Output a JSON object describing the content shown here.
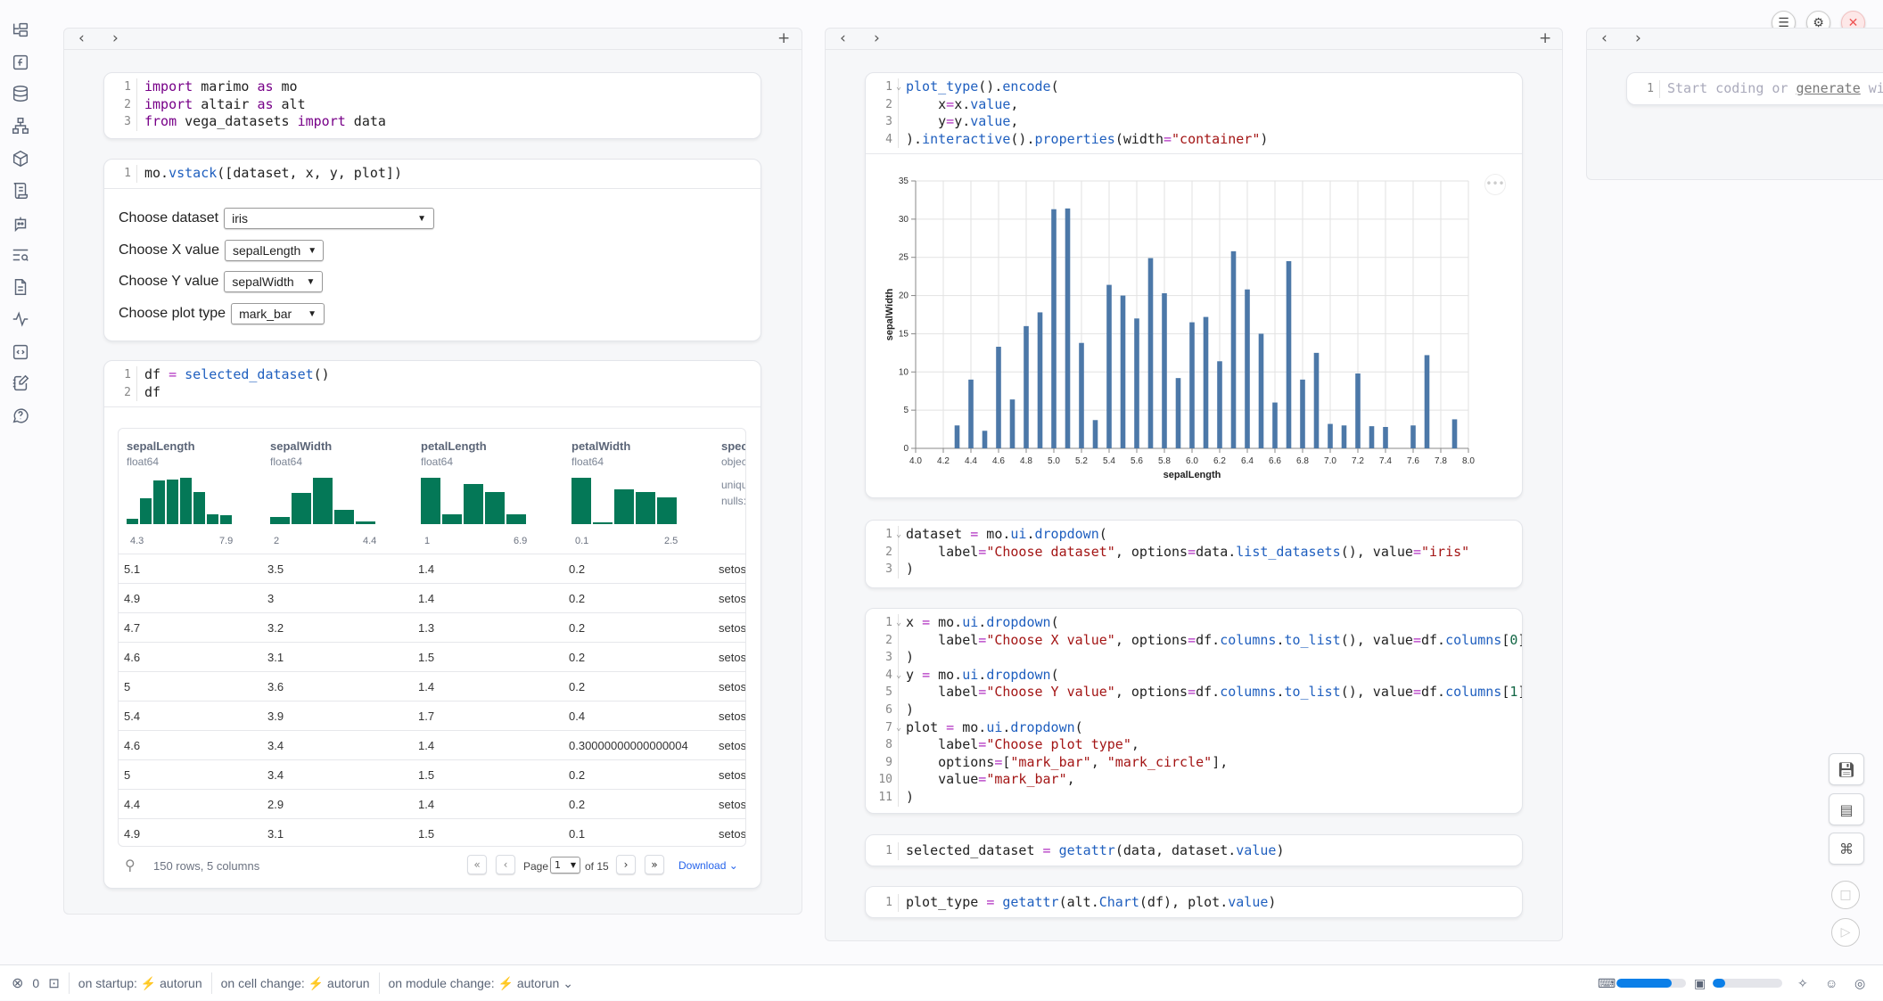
{
  "sidebar": {
    "icons": [
      "file-tree-icon",
      "function-icon",
      "database-icon",
      "dependency-graph-icon",
      "package-icon",
      "scroll-log-icon",
      "chat-bot-icon",
      "search-list-icon",
      "document-icon",
      "activity-icon",
      "code-snippet-icon",
      "notebook-edit-icon",
      "help-icon"
    ]
  },
  "nav": {
    "back": "‹",
    "forward": "›",
    "add": "+"
  },
  "topbar": {
    "menu_icon": "menu-icon",
    "settings_icon": "gear-icon",
    "close_icon": "close-icon"
  },
  "cells": {
    "imports": [
      [
        [
          "k",
          "import"
        ],
        [
          "p",
          " marimo "
        ],
        [
          "k",
          "as"
        ],
        [
          "p",
          " mo"
        ]
      ],
      [
        [
          "k",
          "import"
        ],
        [
          "p",
          " altair "
        ],
        [
          "k",
          "as"
        ],
        [
          "p",
          " alt"
        ]
      ],
      [
        [
          "k",
          "from"
        ],
        [
          "p",
          " vega_datasets "
        ],
        [
          "k",
          "import"
        ],
        [
          "p",
          " data"
        ]
      ]
    ],
    "vstack": [
      [
        [
          "p",
          "mo."
        ],
        [
          "f",
          "vstack"
        ],
        [
          "p",
          "([dataset, x, y, plot])"
        ]
      ]
    ],
    "df": [
      [
        [
          "p",
          "df "
        ],
        [
          "o",
          "="
        ],
        [
          "p",
          " "
        ],
        [
          "f",
          "selected_dataset"
        ],
        [
          "p",
          "()"
        ]
      ],
      [
        [
          "p",
          "df"
        ]
      ]
    ],
    "encode": [
      [
        [
          "f",
          "plot_type"
        ],
        [
          "p",
          "()."
        ],
        [
          "f",
          "encode"
        ],
        [
          "p",
          "("
        ]
      ],
      [
        [
          "p",
          "    x"
        ],
        [
          "o",
          "="
        ],
        [
          "p",
          "x."
        ],
        [
          "f",
          "value"
        ],
        [
          "p",
          ","
        ]
      ],
      [
        [
          "p",
          "    y"
        ],
        [
          "o",
          "="
        ],
        [
          "p",
          "y."
        ],
        [
          "f",
          "value"
        ],
        [
          "p",
          ","
        ]
      ],
      [
        [
          "p",
          ")."
        ],
        [
          "f",
          "interactive"
        ],
        [
          "p",
          "()."
        ],
        [
          "f",
          "properties"
        ],
        [
          "p",
          "(width"
        ],
        [
          "o",
          "="
        ],
        [
          "s",
          "\"container\""
        ],
        [
          "p",
          ")"
        ]
      ]
    ],
    "dataset": [
      [
        [
          "p",
          "dataset "
        ],
        [
          "o",
          "="
        ],
        [
          "p",
          " mo."
        ],
        [
          "f",
          "ui"
        ],
        [
          "p",
          "."
        ],
        [
          "f",
          "dropdown"
        ],
        [
          "p",
          "("
        ]
      ],
      [
        [
          "p",
          "    label"
        ],
        [
          "o",
          "="
        ],
        [
          "s",
          "\"Choose dataset\""
        ],
        [
          "p",
          ", options"
        ],
        [
          "o",
          "="
        ],
        [
          "p",
          "data."
        ],
        [
          "f",
          "list_datasets"
        ],
        [
          "p",
          "(), value"
        ],
        [
          "o",
          "="
        ],
        [
          "s",
          "\"iris\""
        ]
      ],
      [
        [
          "p",
          ")"
        ]
      ]
    ],
    "dropdowns": [
      [
        [
          "p",
          "x "
        ],
        [
          "o",
          "="
        ],
        [
          "p",
          " mo."
        ],
        [
          "f",
          "ui"
        ],
        [
          "p",
          "."
        ],
        [
          "f",
          "dropdown"
        ],
        [
          "p",
          "("
        ]
      ],
      [
        [
          "p",
          "    label"
        ],
        [
          "o",
          "="
        ],
        [
          "s",
          "\"Choose X value\""
        ],
        [
          "p",
          ", options"
        ],
        [
          "o",
          "="
        ],
        [
          "p",
          "df."
        ],
        [
          "f",
          "columns"
        ],
        [
          "p",
          "."
        ],
        [
          "f",
          "to_list"
        ],
        [
          "p",
          "(), value"
        ],
        [
          "o",
          "="
        ],
        [
          "p",
          "df."
        ],
        [
          "f",
          "columns"
        ],
        [
          "p",
          "["
        ],
        [
          "n",
          "0"
        ],
        [
          "p",
          "]"
        ]
      ],
      [
        [
          "p",
          ")"
        ]
      ],
      [
        [
          "p",
          "y "
        ],
        [
          "o",
          "="
        ],
        [
          "p",
          " mo."
        ],
        [
          "f",
          "ui"
        ],
        [
          "p",
          "."
        ],
        [
          "f",
          "dropdown"
        ],
        [
          "p",
          "("
        ]
      ],
      [
        [
          "p",
          "    label"
        ],
        [
          "o",
          "="
        ],
        [
          "s",
          "\"Choose Y value\""
        ],
        [
          "p",
          ", options"
        ],
        [
          "o",
          "="
        ],
        [
          "p",
          "df."
        ],
        [
          "f",
          "columns"
        ],
        [
          "p",
          "."
        ],
        [
          "f",
          "to_list"
        ],
        [
          "p",
          "(), value"
        ],
        [
          "o",
          "="
        ],
        [
          "p",
          "df."
        ],
        [
          "f",
          "columns"
        ],
        [
          "p",
          "["
        ],
        [
          "n",
          "1"
        ],
        [
          "p",
          "]"
        ]
      ],
      [
        [
          "p",
          ")"
        ]
      ],
      [
        [
          "p",
          "plot "
        ],
        [
          "o",
          "="
        ],
        [
          "p",
          " mo."
        ],
        [
          "f",
          "ui"
        ],
        [
          "p",
          "."
        ],
        [
          "f",
          "dropdown"
        ],
        [
          "p",
          "("
        ]
      ],
      [
        [
          "p",
          "    label"
        ],
        [
          "o",
          "="
        ],
        [
          "s",
          "\"Choose plot type\""
        ],
        [
          "p",
          ","
        ]
      ],
      [
        [
          "p",
          "    options"
        ],
        [
          "o",
          "="
        ],
        [
          "p",
          "["
        ],
        [
          "s",
          "\"mark_bar\""
        ],
        [
          "p",
          ", "
        ],
        [
          "s",
          "\"mark_circle\""
        ],
        [
          "p",
          "],"
        ]
      ],
      [
        [
          "p",
          "    value"
        ],
        [
          "o",
          "="
        ],
        [
          "s",
          "\"mark_bar\""
        ],
        [
          "p",
          ","
        ]
      ],
      [
        [
          "p",
          ")"
        ]
      ]
    ],
    "selected": [
      [
        [
          "p",
          "selected_dataset "
        ],
        [
          "o",
          "="
        ],
        [
          "p",
          " "
        ],
        [
          "f",
          "getattr"
        ],
        [
          "p",
          "(data, dataset."
        ],
        [
          "f",
          "value"
        ],
        [
          "p",
          ")"
        ]
      ]
    ],
    "plottype": [
      [
        [
          "p",
          "plot_type "
        ],
        [
          "o",
          "="
        ],
        [
          "p",
          " "
        ],
        [
          "f",
          "getattr"
        ],
        [
          "p",
          "(alt."
        ],
        [
          "f",
          "Chart"
        ],
        [
          "p",
          "(df), plot."
        ],
        [
          "f",
          "value"
        ],
        [
          "p",
          ")"
        ]
      ]
    ],
    "empty": [
      [
        [
          "ph",
          "Start coding or "
        ],
        [
          "u",
          "generate"
        ],
        [
          "ph",
          " with AI."
        ]
      ]
    ]
  },
  "folds": {
    "encode": [
      1
    ],
    "dataset": [
      1
    ],
    "dropdowns": [
      1,
      4,
      7
    ]
  },
  "form": {
    "dataset": {
      "label": "Choose dataset",
      "value": "iris"
    },
    "x": {
      "label": "Choose X value",
      "value": "sepalLength"
    },
    "y": {
      "label": "Choose Y value",
      "value": "sepalWidth"
    },
    "plot": {
      "label": "Choose plot type",
      "value": "mark_bar"
    }
  },
  "table": {
    "columns": [
      {
        "name": "sepalLength",
        "type": "float64",
        "hist": [
          4,
          18,
          30,
          31,
          32,
          22,
          7,
          6
        ],
        "min": "4.3",
        "max": "7.9"
      },
      {
        "name": "sepalWidth",
        "type": "float64",
        "hist": [
          11,
          46,
          68,
          21,
          4
        ],
        "min": "2",
        "max": "4.4"
      },
      {
        "name": "petalLength",
        "type": "float64",
        "hist": [
          50,
          11,
          43,
          35,
          11
        ],
        "min": "1",
        "max": "6.9"
      },
      {
        "name": "petalWidth",
        "type": "float64",
        "hist": [
          49,
          2,
          37,
          34,
          28
        ],
        "min": "0.1",
        "max": "2.5"
      },
      {
        "name": "species",
        "type": "object",
        "unique": "unique:",
        "nulls": "nulls:"
      }
    ],
    "rows": [
      [
        "5.1",
        "3.5",
        "1.4",
        "0.2",
        "setosa"
      ],
      [
        "4.9",
        "3",
        "1.4",
        "0.2",
        "setosa"
      ],
      [
        "4.7",
        "3.2",
        "1.3",
        "0.2",
        "setosa"
      ],
      [
        "4.6",
        "3.1",
        "1.5",
        "0.2",
        "setosa"
      ],
      [
        "5",
        "3.6",
        "1.4",
        "0.2",
        "setosa"
      ],
      [
        "5.4",
        "3.9",
        "1.7",
        "0.4",
        "setosa"
      ],
      [
        "4.6",
        "3.4",
        "1.4",
        "0.30000000000000004",
        "setosa"
      ],
      [
        "5",
        "3.4",
        "1.5",
        "0.2",
        "setosa"
      ],
      [
        "4.4",
        "2.9",
        "1.4",
        "0.2",
        "setosa"
      ],
      [
        "4.9",
        "3.1",
        "1.5",
        "0.1",
        "setosa"
      ]
    ],
    "footer": {
      "summary": "150 rows, 5 columns",
      "page_label": "Page",
      "page": "1",
      "of": "of 15",
      "download": "Download"
    },
    "hist_color": "#047857"
  },
  "chart_data": {
    "type": "bar",
    "xlabel": "sepalLength",
    "ylabel": "sepalWidth",
    "xlim": [
      4.0,
      8.0
    ],
    "ylim": [
      0,
      35
    ],
    "xticks": [
      "4.0",
      "4.2",
      "4.4",
      "4.6",
      "4.8",
      "5.0",
      "5.2",
      "5.4",
      "5.6",
      "5.8",
      "6.0",
      "6.2",
      "6.4",
      "6.6",
      "6.8",
      "7.0",
      "7.2",
      "7.4",
      "7.6",
      "7.8",
      "8.0"
    ],
    "yticks": [
      "0",
      "5",
      "10",
      "15",
      "20",
      "25",
      "30",
      "35"
    ],
    "x": [
      4.3,
      4.4,
      4.5,
      4.6,
      4.7,
      4.8,
      4.9,
      5.0,
      5.1,
      5.2,
      5.3,
      5.4,
      5.5,
      5.6,
      5.7,
      5.8,
      5.9,
      6.0,
      6.1,
      6.2,
      6.3,
      6.4,
      6.5,
      6.6,
      6.7,
      6.8,
      6.9,
      7.0,
      7.1,
      7.2,
      7.3,
      7.4,
      7.6,
      7.7,
      7.9
    ],
    "values": [
      3.0,
      9.0,
      2.3,
      13.3,
      6.4,
      16.0,
      17.8,
      31.3,
      31.4,
      13.8,
      3.7,
      21.4,
      20.0,
      17.0,
      24.9,
      20.3,
      9.2,
      16.5,
      17.2,
      11.4,
      25.8,
      20.8,
      15.0,
      6.0,
      24.5,
      9.0,
      12.5,
      3.2,
      3.0,
      9.8,
      2.9,
      2.8,
      3.0,
      12.2,
      3.8
    ],
    "grid": true,
    "color": "#4c78a8"
  },
  "status": {
    "errors": "0",
    "startup": "on startup: ⚡ autorun",
    "cell_change": "on cell change: ⚡ autorun",
    "module_change": "on module change: ⚡ autorun ⌄",
    "memory_percent": 80,
    "cpu_percent": 18
  }
}
